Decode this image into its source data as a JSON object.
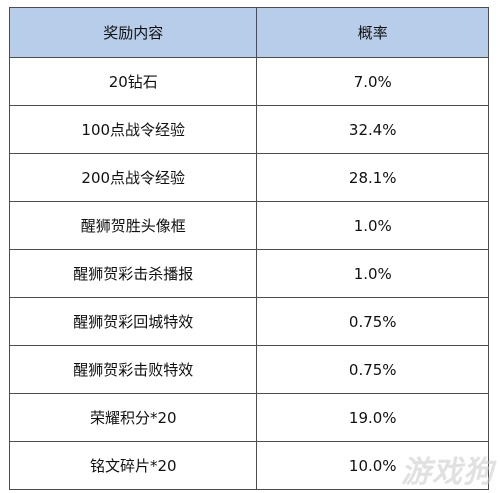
{
  "table": {
    "headers": [
      "奖励内容",
      "概率"
    ],
    "rows": [
      [
        "20钻石",
        "7.0%"
      ],
      [
        "100点战令经验",
        "32.4%"
      ],
      [
        "200点战令经验",
        "28.1%"
      ],
      [
        "醒狮贺胜头像框",
        "1.0%"
      ],
      [
        "醒狮贺彩击杀播报",
        "1.0%"
      ],
      [
        "醒狮贺彩回城特效",
        "0.75%"
      ],
      [
        "醒狮贺彩击败特效",
        "0.75%"
      ],
      [
        "荣耀积分*20",
        "19.0%"
      ],
      [
        "铭文碎片*20",
        "10.0%"
      ]
    ]
  },
  "watermark": "游戏狗",
  "colors": {
    "header_bg": "#b8cdea",
    "border": "#4d4d4d"
  }
}
